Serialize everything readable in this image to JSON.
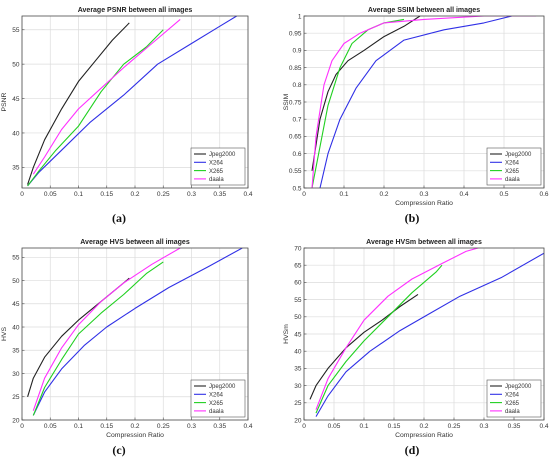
{
  "chart_data": [
    {
      "type": "line",
      "title": "Average PSNR between all images",
      "xlabel": "",
      "ylabel": "PSNR",
      "caption": "(a)",
      "xlim": [
        0,
        0.4
      ],
      "ylim": [
        32,
        57
      ],
      "xticks": [
        0,
        0.05,
        0.1,
        0.15,
        0.2,
        0.25,
        0.3,
        0.35,
        0.4
      ],
      "xtick_labels": [
        "0",
        "0.05",
        "0.1",
        "0.15",
        "0.2",
        "0.25",
        "0.3",
        "0.35",
        "0.4"
      ],
      "yticks": [
        35,
        40,
        45,
        50,
        55
      ],
      "ytick_labels": [
        "35",
        "40",
        "45",
        "50",
        "55"
      ],
      "grid": true,
      "legend_position": "bottom-right",
      "series": [
        {
          "name": "Jpeg2000",
          "color": "#222222",
          "x": [
            0.01,
            0.02,
            0.04,
            0.07,
            0.1,
            0.13,
            0.16,
            0.19
          ],
          "y": [
            32.5,
            35,
            39,
            43.5,
            47.5,
            50.5,
            53.5,
            56
          ]
        },
        {
          "name": "X264",
          "color": "#3030e6",
          "x": [
            0.01,
            0.03,
            0.07,
            0.12,
            0.18,
            0.24,
            0.3,
            0.35,
            0.38
          ],
          "y": [
            32.3,
            34.3,
            37.5,
            41.5,
            45.5,
            50,
            53,
            55.5,
            57
          ]
        },
        {
          "name": "X265",
          "color": "#20d020",
          "x": [
            0.01,
            0.03,
            0.06,
            0.1,
            0.14,
            0.18,
            0.22,
            0.25
          ],
          "y": [
            32.3,
            34.5,
            37.5,
            41,
            46,
            50,
            52.5,
            55
          ]
        },
        {
          "name": "daala",
          "color": "#ff30ff",
          "x": [
            0.02,
            0.04,
            0.07,
            0.1,
            0.14,
            0.18,
            0.23,
            0.28
          ],
          "y": [
            34,
            36.5,
            40.5,
            43.5,
            46.5,
            49.5,
            53,
            56.5
          ]
        }
      ]
    },
    {
      "type": "line",
      "title": "Average SSIM between all images",
      "xlabel": "Compression Ratio",
      "ylabel": "SSIM",
      "caption": "(b)",
      "xlim": [
        0,
        0.6
      ],
      "ylim": [
        0.5,
        1
      ],
      "xticks": [
        0,
        0.1,
        0.2,
        0.3,
        0.4,
        0.5,
        0.6
      ],
      "xtick_labels": [
        "0",
        "0.1",
        "0.2",
        "0.3",
        "0.4",
        "0.5",
        "0.6"
      ],
      "yticks": [
        0.5,
        0.55,
        0.6,
        0.65,
        0.7,
        0.75,
        0.8,
        0.85,
        0.9,
        0.95,
        1
      ],
      "ytick_labels": [
        "0.5",
        "0.55",
        "0.6",
        "0.65",
        "0.7",
        "0.75",
        "0.8",
        "0.85",
        "0.9",
        "0.95",
        "1"
      ],
      "grid": true,
      "legend_position": "bottom-right",
      "series": [
        {
          "name": "Jpeg2000",
          "color": "#222222",
          "x": [
            0.02,
            0.04,
            0.06,
            0.08,
            0.11,
            0.15,
            0.2,
            0.25,
            0.29
          ],
          "y": [
            0.55,
            0.7,
            0.78,
            0.83,
            0.87,
            0.9,
            0.94,
            0.97,
            1
          ]
        },
        {
          "name": "X264",
          "color": "#3030e6",
          "x": [
            0.04,
            0.06,
            0.09,
            0.13,
            0.18,
            0.25,
            0.35,
            0.45,
            0.52
          ],
          "y": [
            0.5,
            0.6,
            0.7,
            0.79,
            0.87,
            0.93,
            0.96,
            0.98,
            1
          ]
        },
        {
          "name": "X265",
          "color": "#20d020",
          "x": [
            0.02,
            0.04,
            0.06,
            0.09,
            0.12,
            0.16,
            0.2,
            0.25
          ],
          "y": [
            0.5,
            0.62,
            0.74,
            0.85,
            0.92,
            0.96,
            0.98,
            0.99
          ]
        },
        {
          "name": "daala",
          "color": "#ff30ff",
          "x": [
            0.02,
            0.03,
            0.05,
            0.07,
            0.1,
            0.14,
            0.2,
            0.3,
            0.45,
            0.58
          ],
          "y": [
            0.5,
            0.65,
            0.8,
            0.87,
            0.92,
            0.95,
            0.98,
            0.99,
            1,
            1
          ]
        }
      ]
    },
    {
      "type": "line",
      "title": "Average HVS between all images",
      "xlabel": "Compression Ratio",
      "ylabel": "HVS",
      "caption": "(c)",
      "xlim": [
        0,
        0.4
      ],
      "ylim": [
        20,
        57
      ],
      "xticks": [
        0,
        0.05,
        0.1,
        0.15,
        0.2,
        0.25,
        0.3,
        0.35,
        0.4
      ],
      "xtick_labels": [
        "0",
        "0.05",
        "0.1",
        "0.15",
        "0.2",
        "0.25",
        "0.3",
        "0.35",
        "0.4"
      ],
      "yticks": [
        20,
        25,
        30,
        35,
        40,
        45,
        50,
        55
      ],
      "ytick_labels": [
        "20",
        "25",
        "30",
        "35",
        "40",
        "45",
        "50",
        "55"
      ],
      "grid": true,
      "legend_position": "bottom-right",
      "series": [
        {
          "name": "Jpeg2000",
          "color": "#222222",
          "x": [
            0.01,
            0.02,
            0.04,
            0.07,
            0.1,
            0.13,
            0.16,
            0.19
          ],
          "y": [
            25,
            29,
            33.5,
            38,
            41.5,
            44.5,
            47.5,
            50.5
          ]
        },
        {
          "name": "X264",
          "color": "#3030e6",
          "x": [
            0.02,
            0.04,
            0.07,
            0.11,
            0.15,
            0.2,
            0.26,
            0.33,
            0.39
          ],
          "y": [
            21,
            26,
            31,
            36,
            40,
            44,
            48.5,
            53,
            57
          ]
        },
        {
          "name": "X265",
          "color": "#20d020",
          "x": [
            0.02,
            0.04,
            0.07,
            0.1,
            0.14,
            0.18,
            0.22,
            0.25
          ],
          "y": [
            21,
            27,
            33,
            38.5,
            43,
            47,
            51.5,
            54
          ]
        },
        {
          "name": "daala",
          "color": "#ff30ff",
          "x": [
            0.02,
            0.04,
            0.07,
            0.1,
            0.14,
            0.18,
            0.23,
            0.28
          ],
          "y": [
            22,
            29,
            35.5,
            40.5,
            45.5,
            49.5,
            53.5,
            57
          ]
        }
      ]
    },
    {
      "type": "line",
      "title": "Average HVSm between all images",
      "xlabel": "Compression Ratio",
      "ylabel": "HVSm",
      "caption": "(d)",
      "xlim": [
        0,
        0.4
      ],
      "ylim": [
        20,
        70
      ],
      "xticks": [
        0,
        0.05,
        0.1,
        0.15,
        0.2,
        0.25,
        0.3,
        0.35,
        0.4
      ],
      "xtick_labels": [
        "0",
        "0.05",
        "0.1",
        "0.15",
        "0.2",
        "0.25",
        "0.3",
        "0.35",
        "0.4"
      ],
      "yticks": [
        20,
        25,
        30,
        35,
        40,
        45,
        50,
        55,
        60,
        65,
        70
      ],
      "ytick_labels": [
        "20",
        "25",
        "30",
        "35",
        "40",
        "45",
        "50",
        "55",
        "60",
        "65",
        "70"
      ],
      "grid": true,
      "legend_position": "bottom-right",
      "series": [
        {
          "name": "Jpeg2000",
          "color": "#222222",
          "x": [
            0.01,
            0.02,
            0.04,
            0.07,
            0.1,
            0.13,
            0.16,
            0.19
          ],
          "y": [
            26,
            30,
            35,
            41,
            45.5,
            49,
            53,
            56.5
          ]
        },
        {
          "name": "X264",
          "color": "#3030e6",
          "x": [
            0.02,
            0.04,
            0.07,
            0.11,
            0.16,
            0.21,
            0.26,
            0.33,
            0.4
          ],
          "y": [
            21,
            27,
            34,
            40,
            46,
            51,
            56,
            61.5,
            68.5
          ]
        },
        {
          "name": "X265",
          "color": "#20d020",
          "x": [
            0.02,
            0.04,
            0.07,
            0.1,
            0.14,
            0.18,
            0.22,
            0.23
          ],
          "y": [
            22,
            30,
            37,
            43,
            50,
            57,
            63,
            65
          ]
        },
        {
          "name": "daala",
          "color": "#ff30ff",
          "x": [
            0.02,
            0.04,
            0.07,
            0.1,
            0.14,
            0.18,
            0.23,
            0.27,
            0.3
          ],
          "y": [
            23,
            32,
            41,
            49,
            56,
            61,
            65.5,
            69,
            70.5
          ]
        }
      ]
    }
  ]
}
